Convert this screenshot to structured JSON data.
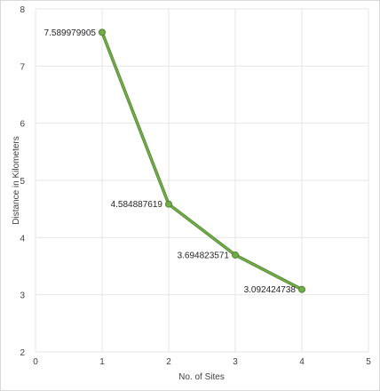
{
  "chart_data": {
    "type": "scatter",
    "title": "",
    "xlabel": "No. of Sites",
    "ylabel": "Distance in Kilometers",
    "xlim": [
      0,
      5
    ],
    "ylim": [
      2,
      8
    ],
    "x_ticks": [
      "0",
      "1",
      "2",
      "3",
      "4",
      "5"
    ],
    "y_ticks": [
      "2",
      "3",
      "4",
      "5",
      "6",
      "7",
      "8"
    ],
    "grid": true,
    "legend": "none",
    "series": [
      {
        "x": [
          1,
          2,
          3,
          4
        ],
        "y": [
          7.589979905,
          4.584887619,
          3.694823571,
          3.092424738
        ],
        "labels": [
          "7.589979905",
          "4.584887619",
          "3.694823571",
          "3.092424738"
        ],
        "color": "#70ad47",
        "marker": "circle",
        "line": "solid"
      }
    ]
  }
}
